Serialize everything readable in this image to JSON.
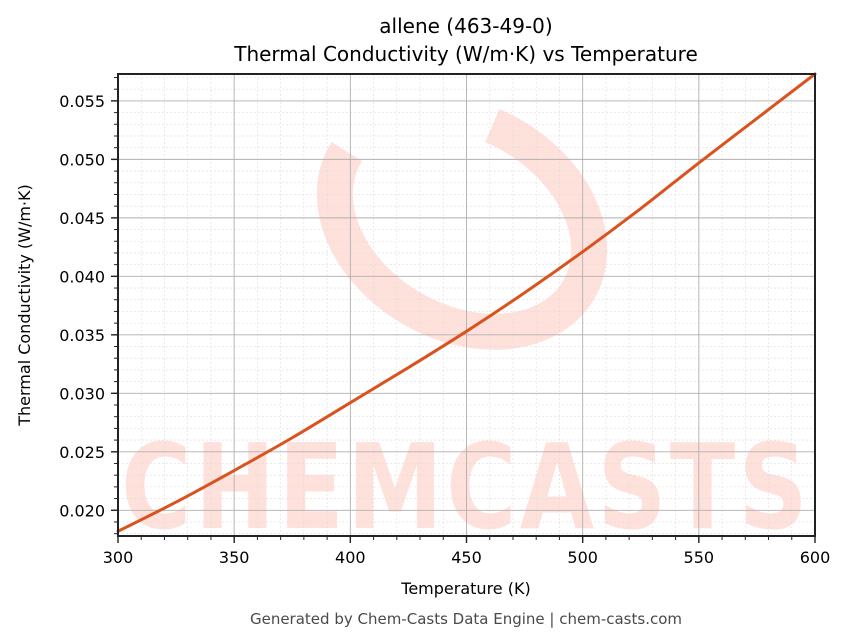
{
  "chart": {
    "title_line1": "allene (463-49-0)",
    "title_line2": "Thermal Conductivity (W/m·K) vs Temperature",
    "xlabel": "Temperature (K)",
    "ylabel": "Thermal Conductivity (W/m·K)",
    "footer": "Generated by Chem-Casts Data Engine | chem-casts.com",
    "watermark": "CHEMCASTS",
    "line_color": "#D9531E",
    "watermark_color": "#FFE1DC"
  },
  "chart_data": {
    "type": "line",
    "title": "allene (463-49-0) Thermal Conductivity (W/m·K) vs Temperature",
    "xlabel": "Temperature (K)",
    "ylabel": "Thermal Conductivity (W/m·K)",
    "xlim": [
      300,
      600
    ],
    "ylim": [
      0.0178,
      0.0573
    ],
    "xticks": [
      300,
      350,
      400,
      450,
      500,
      550,
      600
    ],
    "xtick_labels": [
      "300",
      "350",
      "400",
      "450",
      "500",
      "550",
      "600"
    ],
    "yticks": [
      0.02,
      0.025,
      0.03,
      0.035,
      0.04,
      0.045,
      0.05,
      0.055
    ],
    "ytick_labels": [
      "0.020",
      "0.025",
      "0.030",
      "0.035",
      "0.040",
      "0.045",
      "0.050",
      "0.055"
    ],
    "grid": true,
    "minor_grid": true,
    "legend": null,
    "series": [
      {
        "name": "allene thermal conductivity",
        "color": "#D9531E",
        "x": [
          300,
          325,
          350,
          375,
          400,
          425,
          450,
          475,
          500,
          525,
          550,
          575,
          600
        ],
        "y": [
          0.0182,
          0.0207,
          0.0234,
          0.0262,
          0.0292,
          0.0322,
          0.0353,
          0.0386,
          0.0421,
          0.0458,
          0.0497,
          0.0535,
          0.0573
        ]
      }
    ]
  }
}
